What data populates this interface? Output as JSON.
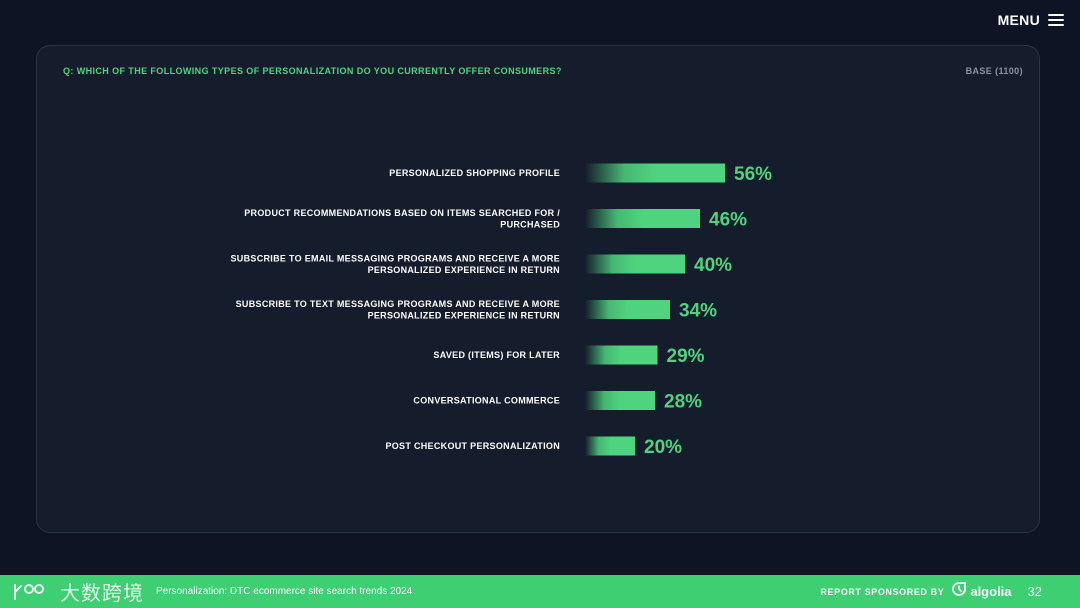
{
  "header": {
    "menu_label": "MENU"
  },
  "card": {
    "question": "Q: WHICH OF THE FOLLOWING TYPES OF PERSONALIZATION DO YOU CURRENTLY OFFER CONSUMERS?",
    "base": "BASE (1100)"
  },
  "chart_data": {
    "type": "bar",
    "orientation": "horizontal",
    "categories": [
      [
        "PERSONALIZED SHOPPING PROFILE"
      ],
      [
        "PRODUCT RECOMMENDATIONS BASED ON ITEMS SEARCHED FOR /",
        "PURCHASED"
      ],
      [
        "SUBSCRIBE TO EMAIL MESSAGING PROGRAMS AND RECEIVE A MORE",
        "PERSONALIZED EXPERIENCE IN RETURN"
      ],
      [
        "SUBSCRIBE TO TEXT MESSAGING PROGRAMS AND RECEIVE A MORE",
        "PERSONALIZED EXPERIENCE IN RETURN"
      ],
      [
        "SAVED (ITEMS) FOR LATER"
      ],
      [
        "CONVERSATIONAL COMMERCE"
      ],
      [
        "POST CHECKOUT PERSONALIZATION"
      ]
    ],
    "values": [
      56,
      46,
      40,
      34,
      29,
      28,
      20
    ],
    "value_labels": [
      "56%",
      "46%",
      "40%",
      "34%",
      "29%",
      "28%",
      "20%"
    ],
    "unit": "%",
    "xlim": [
      0,
      100
    ],
    "grid": false,
    "legend": "none",
    "bar_color": "#4fd37e"
  },
  "footer": {
    "watermark": "大数跨境",
    "title": "Personalization: DTC ecommerce site search trends 2024",
    "sponsor_label": "REPORT SPONSORED BY",
    "sponsor_name": "algolia",
    "page_number": "32"
  },
  "colors": {
    "background": "#0e1424",
    "card": "#151d2c",
    "accent": "#4fd37e",
    "footer": "#3fcf73"
  }
}
